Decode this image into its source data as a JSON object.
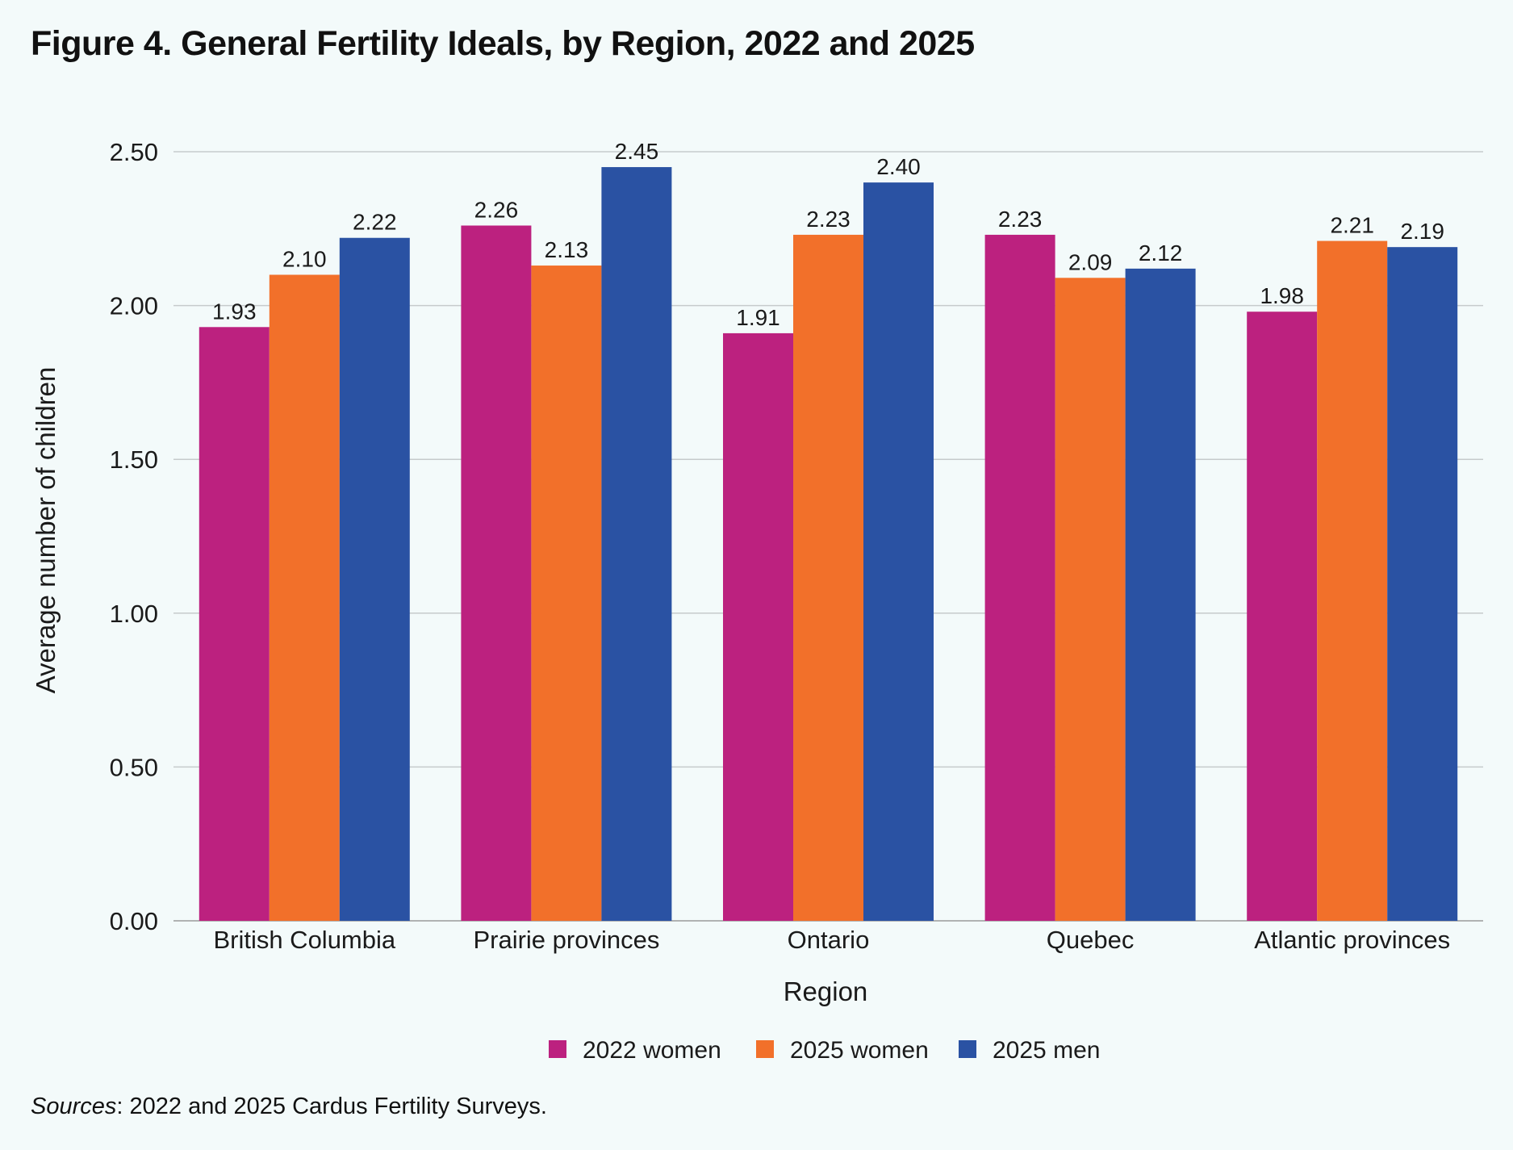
{
  "title": "Figure 4. General Fertility Ideals, by Region, 2022 and 2025",
  "source": {
    "italic": "Sources",
    "rest": ": 2022 and 2025 Cardus Fertility Surveys."
  },
  "chart_data": {
    "type": "bar",
    "xlabel": "Region",
    "ylabel": "Average number of children",
    "ylim": [
      0,
      2.5
    ],
    "yticks": [
      "0.00",
      "0.50",
      "1.00",
      "1.50",
      "2.00",
      "2.50"
    ],
    "grid": true,
    "legend_position": "bottom",
    "categories": [
      "British Columbia",
      "Prairie provinces",
      "Ontario",
      "Quebec",
      "Atlantic provinces"
    ],
    "series": [
      {
        "name": "2022 women",
        "color": "#bc217f",
        "values": [
          1.93,
          2.26,
          1.91,
          2.23,
          1.98
        ],
        "labels": [
          "1.93",
          "2.26",
          "1.91",
          "2.23",
          "1.98"
        ]
      },
      {
        "name": "2025 women",
        "color": "#f2702a",
        "values": [
          2.1,
          2.13,
          2.23,
          2.09,
          2.21
        ],
        "labels": [
          "2.10",
          "2.13",
          "2.23",
          "2.09",
          "2.21"
        ]
      },
      {
        "name": "2025 men",
        "color": "#2a52a3",
        "values": [
          2.22,
          2.45,
          2.4,
          2.12,
          2.19
        ],
        "labels": [
          "2.22",
          "2.45",
          "2.40",
          "2.12",
          "2.19"
        ]
      }
    ]
  }
}
